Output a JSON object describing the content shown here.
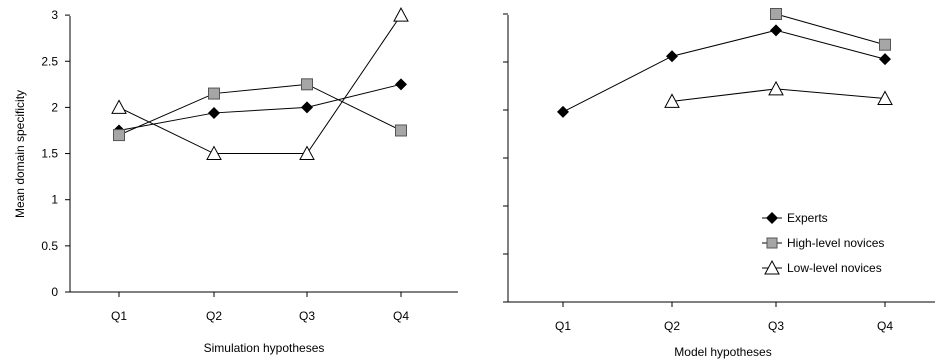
{
  "chart_data": [
    {
      "type": "line",
      "title": "",
      "xlabel": "Simulation hypotheses",
      "ylabel": "Mean domain specificity",
      "categories": [
        "Q1",
        "Q2",
        "Q3",
        "Q4"
      ],
      "ylim": [
        0,
        3
      ],
      "yticks": [
        "0",
        "0.5",
        "1",
        "1.5",
        "2",
        "2.5",
        "3"
      ],
      "grid": false,
      "series": [
        {
          "name": "Experts",
          "marker": "diamond",
          "color": "#000000",
          "values": [
            1.75,
            1.94,
            2.0,
            2.25
          ]
        },
        {
          "name": "High-level novices",
          "marker": "square",
          "color": "#a6a6a6",
          "values": [
            1.7,
            2.15,
            2.25,
            1.75
          ]
        },
        {
          "name": "Low-level novices",
          "marker": "triangle",
          "color": "#ffffff",
          "values": [
            2.0,
            1.5,
            1.5,
            3.0
          ]
        }
      ]
    },
    {
      "type": "line",
      "title": "",
      "xlabel": "Model hypotheses",
      "ylabel": "",
      "categories": [
        "Q1",
        "Q2",
        "Q3",
        "Q4"
      ],
      "ylim": [
        0,
        3
      ],
      "grid": false,
      "legend": {
        "position": "bottom-right",
        "entries": [
          "Experts",
          "High-level novices",
          "Low-level novices"
        ]
      },
      "series": [
        {
          "name": "Experts",
          "marker": "diamond",
          "color": "#000000",
          "values": [
            1.98,
            2.56,
            2.83,
            2.53
          ]
        },
        {
          "name": "High-level novices",
          "marker": "square",
          "color": "#a6a6a6",
          "values": [
            null,
            null,
            3.0,
            2.68
          ]
        },
        {
          "name": "Low-level novices",
          "marker": "triangle",
          "color": "#ffffff",
          "values": [
            null,
            2.09,
            2.22,
            2.12
          ]
        }
      ]
    }
  ]
}
